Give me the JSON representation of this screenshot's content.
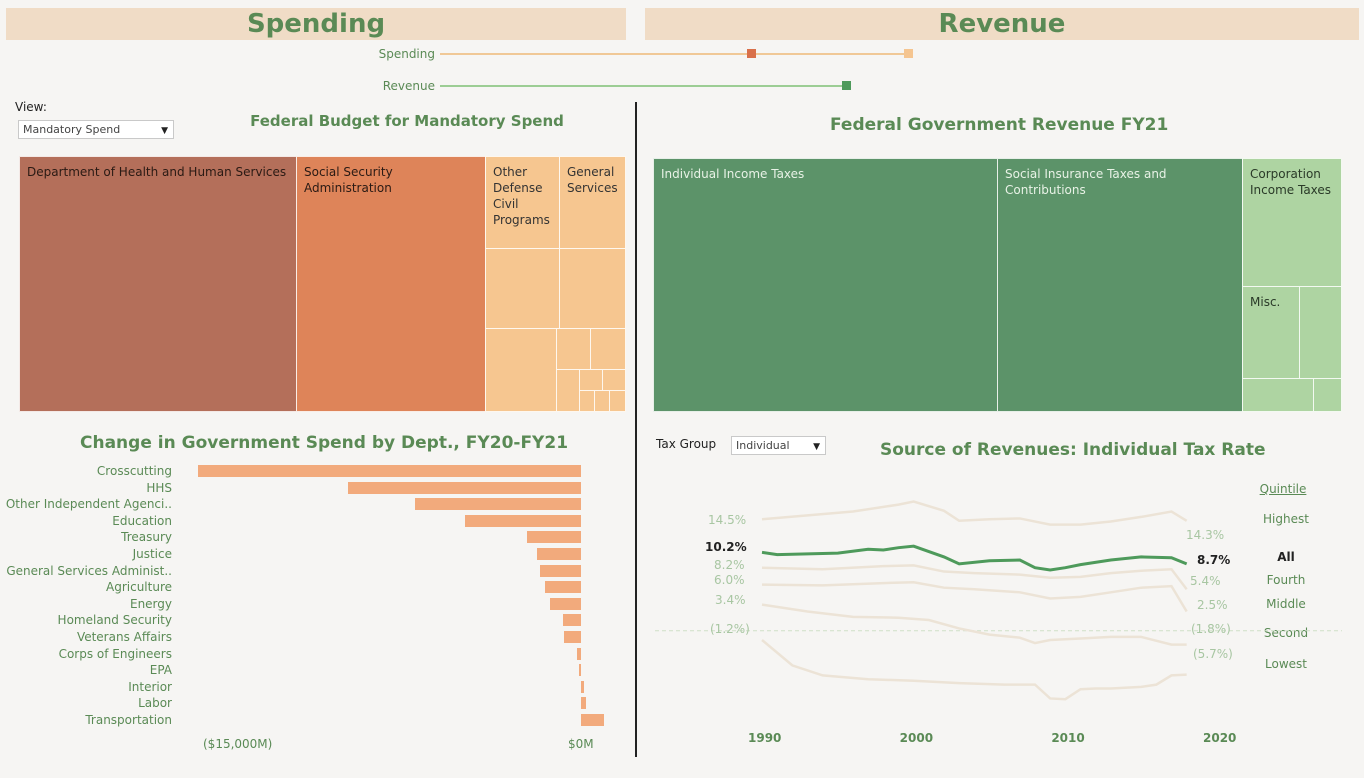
{
  "banners": {
    "spending": "Spending",
    "revenue": "Revenue"
  },
  "sliders": {
    "spending_label": "Spending",
    "revenue_label": "Revenue"
  },
  "colors": {
    "spend_dark": "#b46f5a",
    "spend_mid": "#de8459",
    "spend_light": "#f6c690",
    "rev_dark": "#5c9369",
    "rev_light": "#aed4a2",
    "accent_green": "#5a8a55",
    "bar": "#f2aa7c",
    "line_all": "#4e9a5b",
    "line_other": "#ece3d6"
  },
  "view": {
    "label": "View:",
    "selected": "Mandatory Spend"
  },
  "spend_treemap": {
    "title": "Federal Budget for Mandatory Spend",
    "cells": [
      {
        "label": "Department of Health and Human Services"
      },
      {
        "label": "Social Security Administration"
      },
      {
        "label": "Other Defense Civil Programs"
      },
      {
        "label": "General Services"
      }
    ]
  },
  "revenue_treemap": {
    "title": "Federal Government Revenue FY21",
    "cells": [
      {
        "label": "Individual Income Taxes"
      },
      {
        "label": "Social Insurance Taxes and Contributions"
      },
      {
        "label": "Corporation Income Taxes"
      },
      {
        "label": "Misc."
      }
    ]
  },
  "spend_change": {
    "title": "Change in Government Spend by Dept., FY20-FY21",
    "axis_min_label": "($15,000M)",
    "axis_zero_label": "$0M",
    "rows": [
      {
        "label": "Crosscutting",
        "value": -14800
      },
      {
        "label": "HHS",
        "value": -9000
      },
      {
        "label": "Other Independent Agenci..",
        "value": -6400
      },
      {
        "label": "Education",
        "value": -4500
      },
      {
        "label": "Treasury",
        "value": -2100
      },
      {
        "label": "Justice",
        "value": -1700
      },
      {
        "label": "General Services Administ..",
        "value": -1600
      },
      {
        "label": "Agriculture",
        "value": -1400
      },
      {
        "label": "Energy",
        "value": -1200
      },
      {
        "label": "Homeland Security",
        "value": -700
      },
      {
        "label": "Veterans Affairs",
        "value": -650
      },
      {
        "label": "Corps of Engineers",
        "value": -150
      },
      {
        "label": "EPA",
        "value": -50
      },
      {
        "label": "Interior",
        "value": 100
      },
      {
        "label": "Labor",
        "value": 200
      },
      {
        "label": "Transportation",
        "value": 900
      }
    ]
  },
  "tax_group": {
    "label": "Tax Group",
    "selected": "Individual"
  },
  "chart_data": {
    "type": "line",
    "title": "Source of Revenues: Individual Tax Rate",
    "legend_title": "Quintile",
    "x_ticks": [
      "1990",
      "2000",
      "2010",
      "2020"
    ],
    "xlim": [
      1988,
      2021
    ],
    "ylim": [
      -10,
      18
    ],
    "series": [
      {
        "name": "Highest",
        "start_label": "14.5%",
        "end_label": "14.3%",
        "x": [
          1990,
          1993,
          1996,
          1999,
          2000,
          2002,
          2003,
          2005,
          2007,
          2009,
          2011,
          2013,
          2015,
          2017,
          2018
        ],
        "y": [
          14.5,
          15.0,
          15.5,
          16.4,
          16.8,
          15.6,
          14.3,
          14.5,
          14.6,
          13.8,
          13.8,
          14.2,
          14.8,
          15.5,
          14.3
        ]
      },
      {
        "name": "All",
        "start_label": "10.2%",
        "end_label": "8.7%",
        "x": [
          1990,
          1991,
          1993,
          1995,
          1997,
          1998,
          1999,
          2000,
          2001,
          2002,
          2003,
          2005,
          2007,
          2008,
          2009,
          2010,
          2011,
          2013,
          2015,
          2017,
          2018
        ],
        "y": [
          10.2,
          9.9,
          10.0,
          10.1,
          10.6,
          10.5,
          10.8,
          11.0,
          10.3,
          9.6,
          8.7,
          9.1,
          9.2,
          8.2,
          7.9,
          8.2,
          8.6,
          9.2,
          9.6,
          9.5,
          8.7
        ]
      },
      {
        "name": "Fourth",
        "start_label": "8.2%",
        "end_label": "5.4%",
        "x": [
          1990,
          1994,
          1998,
          2000,
          2002,
          2004,
          2007,
          2009,
          2011,
          2013,
          2015,
          2017,
          2018
        ],
        "y": [
          8.2,
          8.0,
          8.4,
          8.5,
          7.7,
          7.5,
          7.3,
          6.9,
          7.0,
          7.5,
          7.8,
          8.0,
          5.4
        ]
      },
      {
        "name": "Middle",
        "start_label": "6.0%",
        "end_label": "2.5%",
        "x": [
          1990,
          1994,
          1998,
          2000,
          2002,
          2004,
          2007,
          2009,
          2011,
          2013,
          2015,
          2017,
          2018
        ],
        "y": [
          6.0,
          5.9,
          6.2,
          6.3,
          5.6,
          5.4,
          5.0,
          4.2,
          4.4,
          5.0,
          5.6,
          5.8,
          2.5
        ]
      },
      {
        "name": "Second",
        "start_label": "3.4%",
        "end_label": null,
        "x": [
          1990,
          1993,
          1996,
          1999,
          2001,
          2003,
          2005,
          2007,
          2008,
          2009,
          2011,
          2013,
          2015,
          2017,
          2018
        ],
        "y": [
          3.4,
          2.5,
          1.8,
          1.7,
          1.4,
          0.3,
          -0.5,
          -0.9,
          -1.6,
          -1.2,
          -1.0,
          -0.8,
          -0.8,
          -1.8,
          -1.8
        ]
      },
      {
        "name": "Lowest",
        "start_label": "(1.2%)",
        "end_label": "(5.7%)",
        "x": [
          1990,
          1992,
          1994,
          1997,
          2000,
          2003,
          2006,
          2008,
          2009,
          2010,
          2011,
          2012,
          2013,
          2015,
          2016,
          2017,
          2018
        ],
        "y": [
          -1.2,
          -4.5,
          -5.8,
          -6.3,
          -6.5,
          -6.8,
          -7.0,
          -7.0,
          -8.8,
          -8.9,
          -7.6,
          -7.5,
          -7.5,
          -7.3,
          -7.0,
          -5.8,
          -5.7
        ]
      }
    ],
    "labels_left": [
      {
        "text": "14.5%",
        "series": "Highest"
      },
      {
        "text": "10.2%",
        "series": "All"
      },
      {
        "text": "8.2%",
        "series": "Fourth"
      },
      {
        "text": "6.0%",
        "series": "Middle"
      },
      {
        "text": "3.4%",
        "series": "Second"
      },
      {
        "text": "(1.2%)",
        "series": "Lowest"
      }
    ],
    "labels_right": [
      {
        "text": "14.3%",
        "series": "Highest"
      },
      {
        "text": "8.7%",
        "series": "All"
      },
      {
        "text": "5.4%",
        "series": "Fourth"
      },
      {
        "text": "2.5%",
        "series": "Middle"
      },
      {
        "text": "(1.8%)",
        "series": "Second"
      },
      {
        "text": "(5.7%)",
        "series": "Lowest"
      }
    ],
    "reference_line": 0
  }
}
